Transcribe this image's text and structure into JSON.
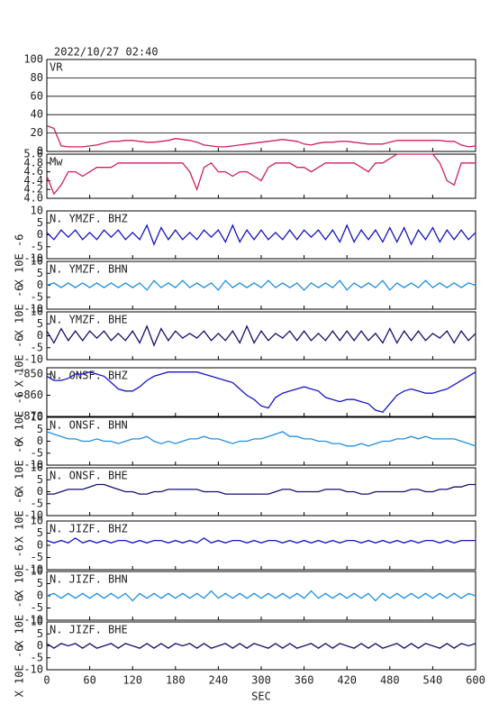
{
  "header": {
    "timestamp": "2022/10/27 02:40"
  },
  "x_axis": {
    "label": "SEC",
    "xlim": [
      0,
      600
    ],
    "xticks": [
      0,
      60,
      120,
      180,
      240,
      300,
      360,
      420,
      480,
      540,
      600
    ]
  },
  "x": [
    0,
    10,
    20,
    30,
    40,
    50,
    60,
    70,
    80,
    90,
    100,
    110,
    120,
    130,
    140,
    150,
    160,
    170,
    180,
    190,
    200,
    210,
    220,
    230,
    240,
    250,
    260,
    270,
    280,
    290,
    300,
    310,
    320,
    330,
    340,
    350,
    360,
    370,
    380,
    390,
    400,
    410,
    420,
    430,
    440,
    450,
    460,
    470,
    480,
    490,
    500,
    510,
    520,
    530,
    540,
    550,
    560,
    570,
    580,
    590,
    600
  ],
  "chart_data": [
    {
      "type": "line",
      "label": "VR",
      "color": "#d0205a",
      "ylim": [
        0,
        100
      ],
      "yticks": [
        0,
        20,
        40,
        60,
        80,
        100
      ],
      "grid": true,
      "values": [
        28,
        25,
        6,
        5,
        5,
        5,
        6,
        7,
        9,
        11,
        11,
        12,
        12,
        11,
        10,
        10,
        11,
        12,
        14,
        13,
        12,
        10,
        7,
        6,
        5,
        5,
        6,
        7,
        8,
        9,
        10,
        11,
        12,
        13,
        12,
        11,
        8,
        7,
        9,
        10,
        10,
        11,
        11,
        10,
        9,
        8,
        8,
        8,
        10,
        12,
        12,
        12,
        12,
        12,
        12,
        12,
        11,
        11,
        7,
        5,
        6
      ]
    },
    {
      "type": "line",
      "label": "Mw",
      "color": "#d0205a",
      "ylim": [
        4,
        5
      ],
      "yticks": [
        {
          "value": 4,
          "label": "4.0"
        },
        4.2,
        4.4,
        4.6,
        4.8,
        {
          "value": 5,
          "label": "5.0"
        }
      ],
      "grid": false,
      "values": [
        4.5,
        4.1,
        4.3,
        4.6,
        4.6,
        4.5,
        4.6,
        4.7,
        4.7,
        4.7,
        4.8,
        4.8,
        4.8,
        4.8,
        4.8,
        4.8,
        4.8,
        4.8,
        4.8,
        4.8,
        4.6,
        4.2,
        4.7,
        4.8,
        4.6,
        4.6,
        4.5,
        4.6,
        4.6,
        4.5,
        4.4,
        4.7,
        4.8,
        4.8,
        4.8,
        4.7,
        4.7,
        4.6,
        4.7,
        4.8,
        4.8,
        4.8,
        4.8,
        4.8,
        4.7,
        4.6,
        4.8,
        4.8,
        4.9,
        5.0,
        5.0,
        5.0,
        5.0,
        5.0,
        5.0,
        4.8,
        4.4,
        4.3,
        4.8,
        4.8,
        4.8
      ]
    },
    {
      "type": "line",
      "label": "N. YMZF. BHZ",
      "ylabel": "X 10E -6",
      "color": "#1515c8",
      "ylim": [
        -10,
        10
      ],
      "yticks": [
        10,
        5,
        0,
        -5,
        -10
      ],
      "grid": false,
      "values": [
        1,
        -2,
        2,
        -1,
        2,
        -2,
        1,
        -2,
        2,
        -1,
        2,
        -2,
        1,
        -2,
        4,
        -4,
        3,
        -2,
        2,
        -2,
        1,
        -2,
        2,
        -1,
        2,
        -3,
        4,
        -3,
        2,
        -2,
        2,
        -2,
        1,
        -2,
        2,
        -2,
        2,
        -1,
        2,
        -2,
        2,
        -3,
        4,
        -3,
        2,
        -2,
        2,
        -3,
        3,
        -3,
        3,
        -4,
        2,
        -2,
        3,
        -3,
        2,
        -2,
        2,
        -2,
        1
      ]
    },
    {
      "type": "line",
      "label": "N. YMZF. BHN",
      "ylabel": "X 10E -6",
      "color": "#2090e0",
      "ylim": [
        -10,
        10
      ],
      "yticks": [
        10,
        5,
        0,
        -5,
        -10
      ],
      "grid": false,
      "values": [
        0,
        1,
        -1,
        1,
        -1,
        1,
        -1,
        1,
        -1,
        1,
        -1,
        1,
        -1,
        1,
        -2,
        2,
        -1,
        1,
        -1,
        2,
        -1,
        1,
        -1,
        1,
        -2,
        2,
        -1,
        1,
        -1,
        1,
        -1,
        2,
        -1,
        1,
        -1,
        1,
        -2,
        1,
        -1,
        1,
        -1,
        2,
        -2,
        1,
        -1,
        1,
        -1,
        2,
        -2,
        1,
        -1,
        1,
        -1,
        2,
        -1,
        1,
        -1,
        1,
        -1,
        1,
        0
      ]
    },
    {
      "type": "line",
      "label": "N. YMZF. BHE",
      "ylabel": "X 10E -6",
      "color": "#12126e",
      "ylim": [
        -10,
        10
      ],
      "yticks": [
        10,
        5,
        0,
        -5,
        -10
      ],
      "grid": false,
      "values": [
        2,
        -3,
        3,
        -2,
        2,
        -2,
        2,
        -1,
        2,
        -2,
        1,
        -2,
        2,
        -3,
        4,
        -4,
        3,
        -2,
        2,
        -1,
        1,
        -1,
        2,
        -2,
        1,
        -2,
        2,
        -3,
        4,
        -3,
        2,
        -2,
        1,
        -1,
        2,
        -2,
        2,
        -2,
        1,
        -2,
        2,
        -2,
        2,
        -2,
        2,
        -2,
        1,
        -3,
        3,
        -3,
        2,
        -2,
        2,
        -2,
        1,
        -1,
        2,
        -3,
        2,
        -2,
        1
      ]
    },
    {
      "type": "line",
      "label": "N. ONSF. BHZ",
      "ylabel": "X 10E -6",
      "color": "#1515c8",
      "ylim": [
        -870,
        -847
      ],
      "yticks": [
        -850,
        -860,
        -870
      ],
      "grid": false,
      "values": [
        -851,
        -853,
        -853,
        -852,
        -850,
        -850,
        -849,
        -850,
        -851,
        -854,
        -857,
        -858,
        -858,
        -856,
        -853,
        -851,
        -850,
        -849,
        -849,
        -849,
        -849,
        -849,
        -850,
        -851,
        -852,
        -853,
        -854,
        -857,
        -860,
        -862,
        -865,
        -866,
        -861,
        -859,
        -858,
        -857,
        -856,
        -857,
        -858,
        -861,
        -862,
        -863,
        -862,
        -862,
        -863,
        -864,
        -867,
        -868,
        -864,
        -860,
        -858,
        -857,
        -858,
        -859,
        -859,
        -858,
        -857,
        -855,
        -853,
        -851,
        -849
      ]
    },
    {
      "type": "line",
      "label": "N. ONSF. BHN",
      "ylabel": "X 10E -6",
      "color": "#2090e0",
      "ylim": [
        -10,
        10
      ],
      "yticks": [
        10,
        5,
        0,
        -5,
        -10
      ],
      "grid": false,
      "values": [
        4,
        3,
        2,
        1,
        1,
        0,
        0,
        1,
        0,
        0,
        -1,
        0,
        1,
        1,
        2,
        0,
        -1,
        0,
        -1,
        0,
        1,
        1,
        2,
        1,
        1,
        0,
        -1,
        0,
        0,
        1,
        1,
        2,
        3,
        4,
        2,
        2,
        1,
        1,
        0,
        0,
        -1,
        -1,
        -2,
        -2,
        -1,
        -2,
        -1,
        0,
        0,
        1,
        1,
        2,
        1,
        2,
        1,
        1,
        1,
        1,
        0,
        -1,
        -2
      ]
    },
    {
      "type": "line",
      "label": "N. ONSF. BHE",
      "ylabel": "X 10E -6",
      "color": "#12126e",
      "ylim": [
        -10,
        10
      ],
      "yticks": [
        10,
        5,
        0,
        -5,
        -10
      ],
      "grid": false,
      "values": [
        -1,
        -1,
        0,
        1,
        1,
        1,
        2,
        3,
        3,
        2,
        1,
        0,
        0,
        -1,
        -1,
        0,
        0,
        1,
        1,
        1,
        1,
        1,
        0,
        0,
        0,
        -1,
        -1,
        -1,
        -1,
        -1,
        -1,
        -1,
        0,
        1,
        1,
        0,
        0,
        0,
        0,
        1,
        1,
        1,
        0,
        0,
        -1,
        -1,
        0,
        0,
        0,
        0,
        0,
        1,
        1,
        0,
        0,
        1,
        1,
        2,
        2,
        3,
        3
      ]
    },
    {
      "type": "line",
      "label": "N. JIZF. BHZ",
      "ylabel": "X 10E -6",
      "color": "#1515c8",
      "ylim": [
        -10,
        10
      ],
      "yticks": [
        10,
        5,
        0,
        -5,
        -10
      ],
      "grid": false,
      "values": [
        2,
        1,
        2,
        1,
        3,
        1,
        2,
        1,
        2,
        1,
        2,
        2,
        1,
        2,
        1,
        2,
        2,
        1,
        2,
        1,
        2,
        1,
        3,
        1,
        2,
        1,
        2,
        2,
        1,
        2,
        1,
        2,
        2,
        1,
        2,
        1,
        2,
        1,
        2,
        1,
        2,
        1,
        2,
        2,
        1,
        2,
        1,
        2,
        1,
        2,
        1,
        2,
        1,
        2,
        2,
        1,
        2,
        1,
        2,
        2,
        2
      ]
    },
    {
      "type": "line",
      "label": "N. JIZF. BHN",
      "ylabel": "X 10E -6",
      "color": "#2090e0",
      "ylim": [
        -10,
        10
      ],
      "yticks": [
        10,
        5,
        0,
        -5,
        -10
      ],
      "grid": false,
      "values": [
        0,
        1,
        -1,
        1,
        -1,
        1,
        -1,
        1,
        -1,
        1,
        -1,
        1,
        -2,
        1,
        -1,
        1,
        -1,
        1,
        -1,
        1,
        -1,
        1,
        -1,
        2,
        -1,
        1,
        -1,
        1,
        -1,
        1,
        -1,
        1,
        -1,
        1,
        -1,
        1,
        -1,
        2,
        -1,
        1,
        -1,
        1,
        -1,
        1,
        -1,
        1,
        -2,
        1,
        -1,
        1,
        -1,
        1,
        -1,
        1,
        -1,
        1,
        -1,
        1,
        -1,
        1,
        0
      ]
    },
    {
      "type": "line",
      "label": "N. JIZF. BHE",
      "ylabel": "X 10E -6",
      "color": "#12126e",
      "ylim": [
        -10,
        10
      ],
      "yticks": [
        10,
        5,
        0,
        -5,
        -10
      ],
      "grid": false,
      "values": [
        1,
        -1,
        1,
        0,
        1,
        -1,
        1,
        -1,
        0,
        1,
        -1,
        1,
        0,
        -1,
        1,
        -1,
        1,
        -1,
        1,
        0,
        1,
        -1,
        1,
        -1,
        0,
        1,
        -1,
        1,
        -1,
        1,
        0,
        -1,
        1,
        -1,
        1,
        -1,
        0,
        1,
        -1,
        1,
        -1,
        1,
        0,
        -1,
        1,
        -1,
        1,
        -1,
        0,
        1,
        -1,
        1,
        -1,
        1,
        0,
        -1,
        1,
        -1,
        1,
        0,
        1
      ]
    }
  ]
}
